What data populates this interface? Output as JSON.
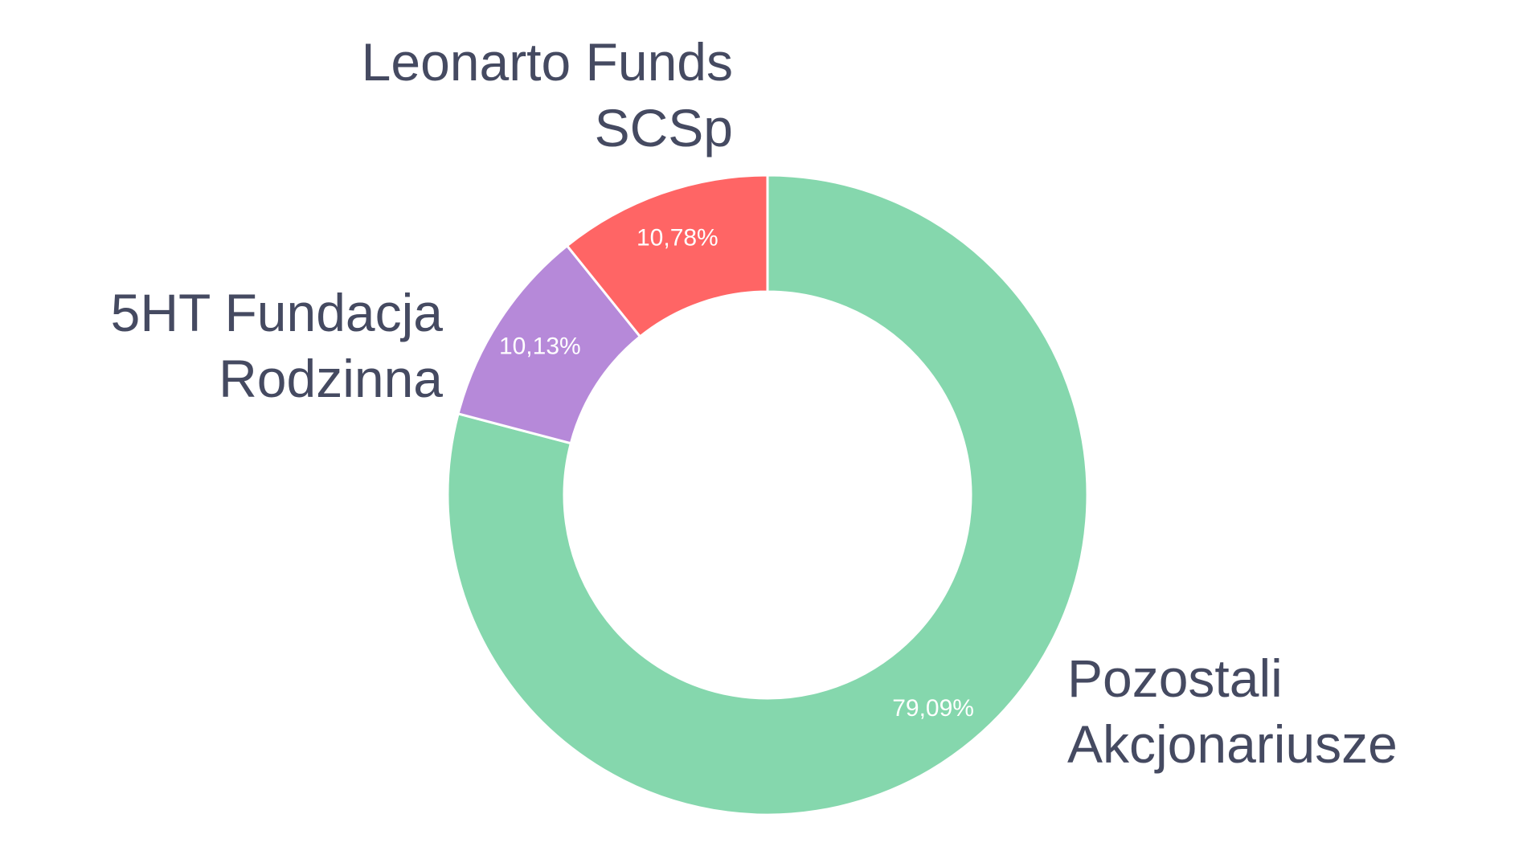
{
  "chart_data": {
    "type": "pie",
    "variant": "donut",
    "title": "",
    "slices": [
      {
        "label_lines": [
          "Pozostali",
          "Akcjonariusze"
        ],
        "value": 79.09,
        "value_label": "79,09%",
        "color": "#85d7ad"
      },
      {
        "label_lines": [
          "5HT Fundacja",
          "Rodzinna"
        ],
        "value": 10.13,
        "value_label": "10,13%",
        "color": "#b689d9"
      },
      {
        "label_lines": [
          "Leonarto Funds",
          "SCSp"
        ],
        "value": 10.78,
        "value_label": "10,78%",
        "color": "#ff6565"
      }
    ],
    "start_angle_deg": 0,
    "direction": "clockwise",
    "slice_border_color": "#ffffff"
  }
}
